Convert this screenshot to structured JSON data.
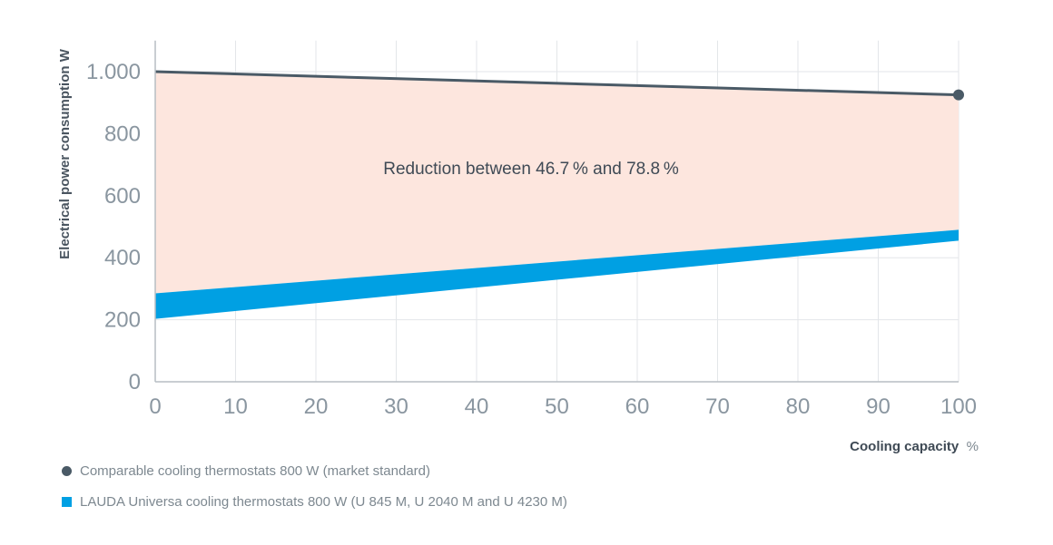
{
  "chart_data": {
    "type": "area",
    "ylabel": "Electrical power consumption W",
    "xlabel": "Cooling capacity",
    "xlabel_unit": "%",
    "x_ticks": [
      0,
      10,
      20,
      30,
      40,
      50,
      60,
      70,
      80,
      90,
      100
    ],
    "y_ticks": [
      0,
      200,
      400,
      600,
      800,
      1000
    ],
    "y_tick_labels": [
      "0",
      "200",
      "400",
      "600",
      "800",
      "1.000"
    ],
    "xlim": [
      0,
      100
    ],
    "ylim": [
      0,
      1100
    ],
    "grid": true,
    "annotation": "Reduction between 46.7 % and 78.8 %",
    "series": [
      {
        "name": "Comparable cooling thermostats 800 W (market standard)",
        "kind": "line",
        "color": "#4a5a66",
        "x": [
          0,
          100
        ],
        "y": [
          1000,
          925
        ]
      },
      {
        "name": "LAUDA Universa cooling thermostats 800 W (U 845 M, U 2040 M and U 4230 M)",
        "kind": "band",
        "color": "#00a0e3",
        "x": [
          0,
          100
        ],
        "y_low": [
          203,
          455
        ],
        "y_high": [
          285,
          490
        ]
      }
    ],
    "reduction_fill_color": "#fde6de"
  },
  "legend": {
    "item1": "Comparable cooling thermostats 800 W (market standard)",
    "item2": "LAUDA Universa cooling thermostats 800 W (U 845 M, U 2040 M and U 4230 M)"
  }
}
